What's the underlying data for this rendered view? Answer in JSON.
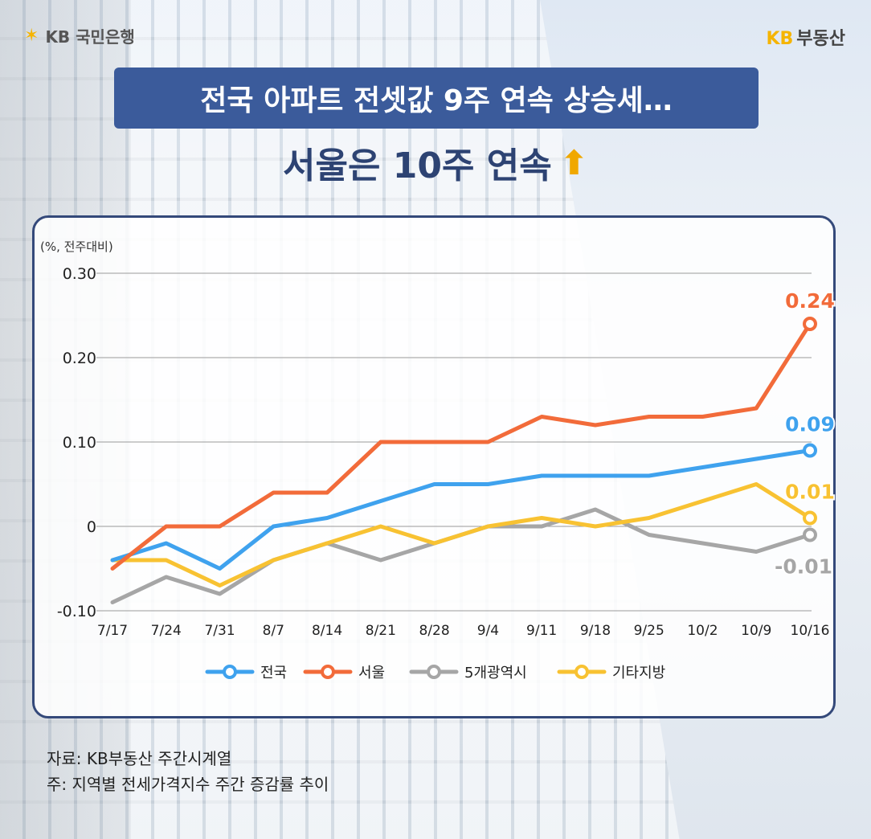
{
  "header": {
    "logo_left": "KB 국민은행",
    "logo_right_kb": "KB",
    "logo_right_text": "부동산"
  },
  "title": "전국 아파트 전셋값 9주 연속 상승세…",
  "subtitle": "서울은 10주 연속",
  "colors": {
    "title_bg": "#3b5b9b",
    "national": "#3fa2ee",
    "seoul": "#f26b3a",
    "metro5": "#a6a6a6",
    "others": "#f8c232"
  },
  "chart_data": {
    "type": "line",
    "unit_label": "(%, 전주대비)",
    "x": [
      "7/17",
      "7/24",
      "7/31",
      "8/7",
      "8/14",
      "8/21",
      "8/28",
      "9/4",
      "9/11",
      "9/18",
      "9/25",
      "10/2",
      "10/9",
      "10/16"
    ],
    "yticks": [
      "0.30",
      "0.20",
      "0.10",
      "0",
      "-0.10"
    ],
    "ylim": [
      -0.1,
      0.3
    ],
    "series": [
      {
        "name": "전국",
        "values": [
          -0.04,
          -0.02,
          -0.05,
          0.0,
          0.01,
          0.03,
          0.05,
          0.05,
          0.06,
          0.06,
          0.06,
          0.07,
          0.08,
          0.09
        ],
        "end_label": "0.09"
      },
      {
        "name": "서울",
        "values": [
          -0.05,
          0.0,
          0.0,
          0.04,
          0.04,
          0.1,
          0.1,
          0.1,
          0.13,
          0.12,
          0.13,
          0.13,
          0.14,
          0.24
        ],
        "end_label": "0.24"
      },
      {
        "name": "5개광역시",
        "values": [
          -0.09,
          -0.06,
          -0.08,
          -0.04,
          -0.02,
          -0.04,
          -0.02,
          0.0,
          0.0,
          0.02,
          -0.01,
          -0.02,
          -0.03,
          -0.01
        ],
        "end_label": "-0.01"
      },
      {
        "name": "기타지방",
        "values": [
          -0.04,
          -0.04,
          -0.07,
          -0.04,
          -0.02,
          0.0,
          -0.02,
          0.0,
          0.01,
          0.0,
          0.01,
          0.03,
          0.05,
          0.01
        ],
        "end_label": "0.01"
      }
    ],
    "legend_placement": "bottom-center"
  },
  "source": {
    "line1": "자료: KB부동산 주간시계열",
    "line2": "주: 지역별 전세가격지수 주간 증감률 추이"
  }
}
